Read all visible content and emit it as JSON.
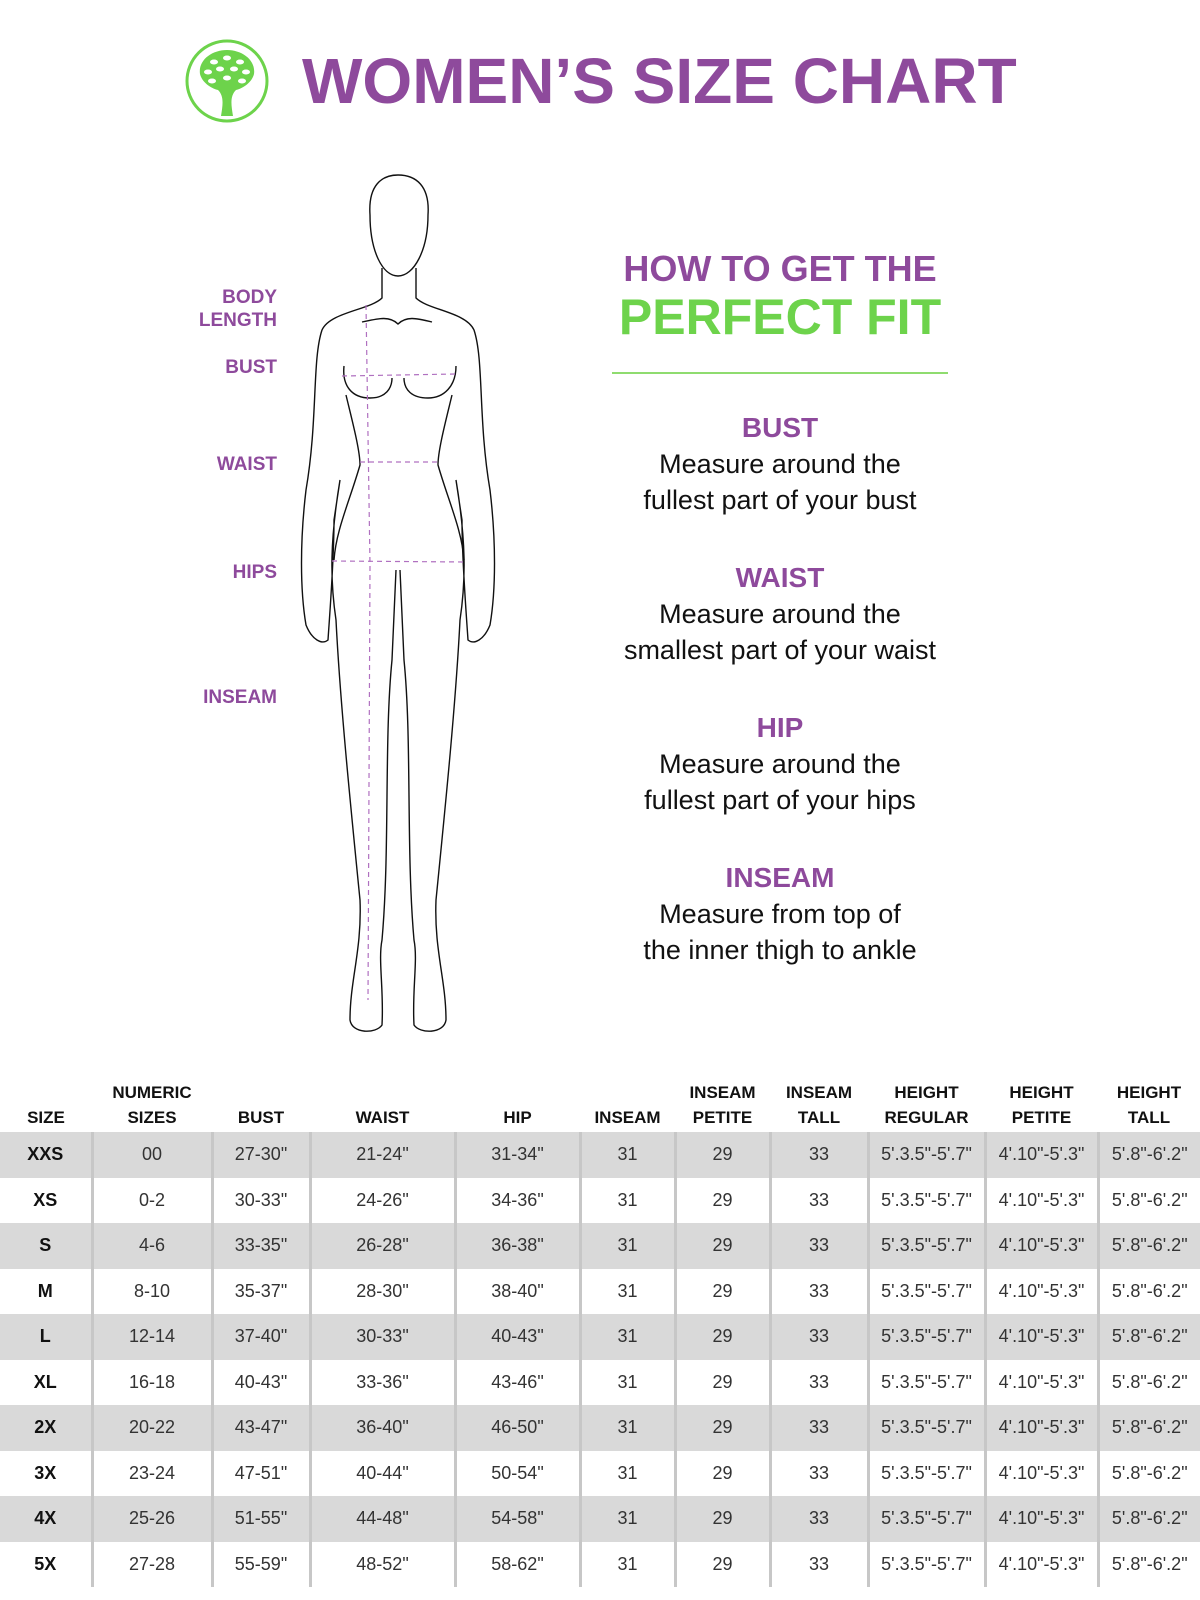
{
  "header": {
    "title": "WOMEN’S SIZE CHART",
    "logo": "tree-in-circle-logo"
  },
  "colors": {
    "purple": "#8e4a9c",
    "green": "#6dd34b"
  },
  "figure_labels": [
    "BODY LENGTH",
    "BUST",
    "WAIST",
    "HIPS",
    "INSEAM"
  ],
  "howto": {
    "line1": "HOW TO GET THE",
    "line2": "PERFECT FIT",
    "sections": [
      {
        "title": "BUST",
        "line1": "Measure around the",
        "line2": "fullest part of your bust"
      },
      {
        "title": "WAIST",
        "line1": "Measure around the",
        "line2": "smallest part of your waist"
      },
      {
        "title": "HIP",
        "line1": "Measure around the",
        "line2": "fullest part of your hips"
      },
      {
        "title": "INSEAM",
        "line1": "Measure from top of",
        "line2": "the inner thigh to ankle"
      }
    ]
  },
  "table": {
    "headers": [
      [
        "SIZE",
        ""
      ],
      [
        "NUMERIC",
        "SIZES"
      ],
      [
        "BUST",
        ""
      ],
      [
        "WAIST",
        ""
      ],
      [
        "HIP",
        ""
      ],
      [
        "INSEAM",
        ""
      ],
      [
        "INSEAM",
        "PETITE"
      ],
      [
        "INSEAM",
        "TALL"
      ],
      [
        "HEIGHT",
        "REGULAR"
      ],
      [
        "HEIGHT",
        "PETITE"
      ],
      [
        "HEIGHT",
        "TALL"
      ]
    ],
    "rows": [
      [
        "XXS",
        "00",
        "27-30\"",
        "21-24\"",
        "31-34\"",
        "31",
        "29",
        "33",
        "5'.3.5\"-5'.7\"",
        "4'.10\"-5'.3\"",
        "5'.8\"-6'.2\""
      ],
      [
        "XS",
        "0-2",
        "30-33\"",
        "24-26\"",
        "34-36\"",
        "31",
        "29",
        "33",
        "5'.3.5\"-5'.7\"",
        "4'.10\"-5'.3\"",
        "5'.8\"-6'.2\""
      ],
      [
        "S",
        "4-6",
        "33-35\"",
        "26-28\"",
        "36-38\"",
        "31",
        "29",
        "33",
        "5'.3.5\"-5'.7\"",
        "4'.10\"-5'.3\"",
        "5'.8\"-6'.2\""
      ],
      [
        "M",
        "8-10",
        "35-37\"",
        "28-30\"",
        "38-40\"",
        "31",
        "29",
        "33",
        "5'.3.5\"-5'.7\"",
        "4'.10\"-5'.3\"",
        "5'.8\"-6'.2\""
      ],
      [
        "L",
        "12-14",
        "37-40\"",
        "30-33\"",
        "40-43\"",
        "31",
        "29",
        "33",
        "5'.3.5\"-5'.7\"",
        "4'.10\"-5'.3\"",
        "5'.8\"-6'.2\""
      ],
      [
        "XL",
        "16-18",
        "40-43\"",
        "33-36\"",
        "43-46\"",
        "31",
        "29",
        "33",
        "5'.3.5\"-5'.7\"",
        "4'.10\"-5'.3\"",
        "5'.8\"-6'.2\""
      ],
      [
        "2X",
        "20-22",
        "43-47\"",
        "36-40\"",
        "46-50\"",
        "31",
        "29",
        "33",
        "5'.3.5\"-5'.7\"",
        "4'.10\"-5'.3\"",
        "5'.8\"-6'.2\""
      ],
      [
        "3X",
        "23-24",
        "47-51\"",
        "40-44\"",
        "50-54\"",
        "31",
        "29",
        "33",
        "5'.3.5\"-5'.7\"",
        "4'.10\"-5'.3\"",
        "5'.8\"-6'.2\""
      ],
      [
        "4X",
        "25-26",
        "51-55\"",
        "44-48\"",
        "54-58\"",
        "31",
        "29",
        "33",
        "5'.3.5\"-5'.7\"",
        "4'.10\"-5'.3\"",
        "5'.8\"-6'.2\""
      ],
      [
        "5X",
        "27-28",
        "55-59\"",
        "48-52\"",
        "58-62\"",
        "31",
        "29",
        "33",
        "5'.3.5\"-5'.7\"",
        "4'.10\"-5'.3\"",
        "5'.8\"-6'.2\""
      ]
    ]
  }
}
